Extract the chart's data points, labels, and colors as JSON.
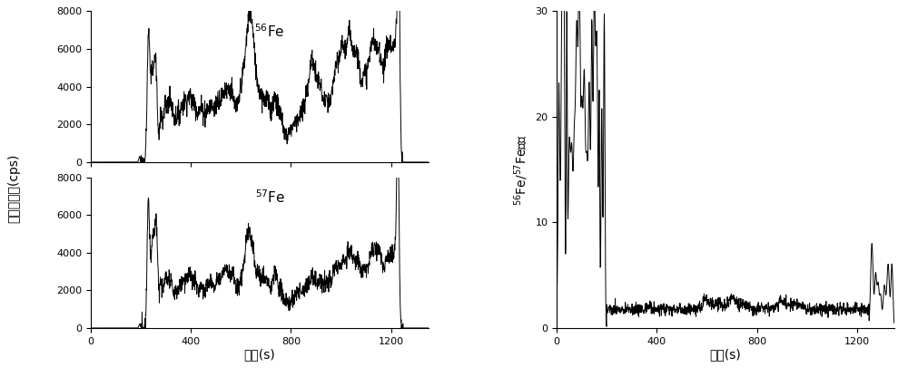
{
  "fig_width": 10.0,
  "fig_height": 4.16,
  "dpi": 100,
  "background_color": "#ffffff",
  "line_color": "#000000",
  "line_width": 0.7,
  "subplot1_label": "$^{56}$Fe",
  "subplot2_label": "$^{57}$Fe",
  "subplot3_ylabel": "$^{56}$Fe/$^{57}$Fe比値",
  "shared_xlabel": "时间(s)",
  "left_ylabel": "信号强度値(cps)",
  "xlim_left": [
    0,
    1350
  ],
  "ylim1": [
    0,
    8000
  ],
  "ylim2": [
    0,
    8000
  ],
  "ylim3": [
    0,
    30
  ],
  "xticks_left": [
    0,
    400,
    800,
    1200
  ],
  "xticks_right": [
    0,
    400,
    800,
    1200
  ],
  "yticks1": [
    0,
    2000,
    4000,
    6000,
    8000
  ],
  "yticks2": [
    0,
    2000,
    4000,
    6000,
    8000
  ],
  "yticks3": [
    0,
    10,
    20,
    30
  ],
  "n_points": 1350,
  "font_size_label": 9,
  "font_size_tick": 8,
  "font_size_annot": 11
}
